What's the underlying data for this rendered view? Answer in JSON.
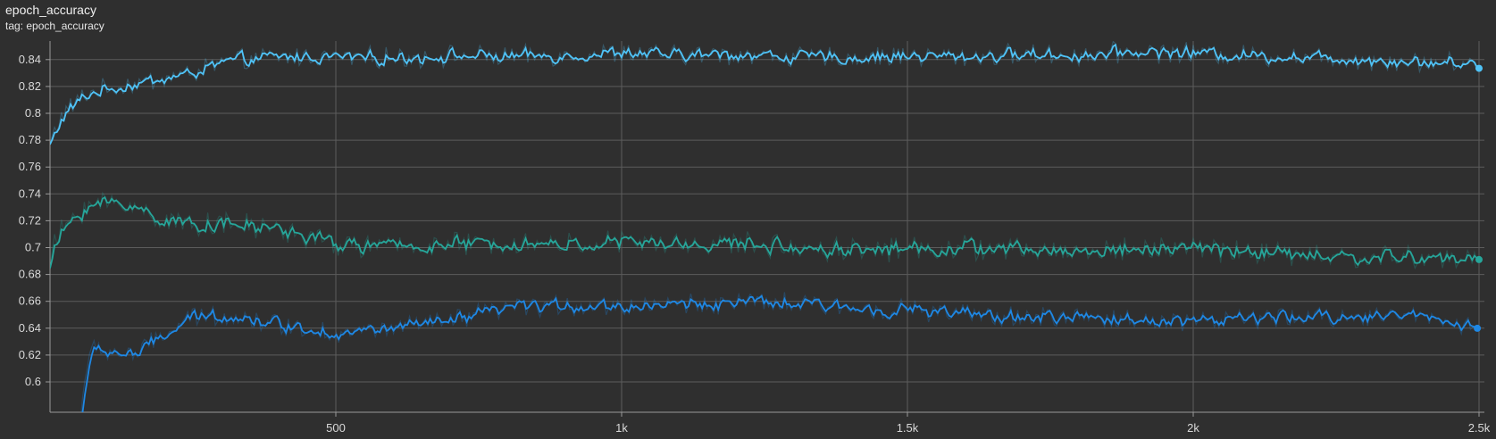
{
  "header": {
    "title": "epoch_accuracy",
    "subtitle": "tag: epoch_accuracy"
  },
  "chart_data": {
    "type": "line",
    "title": "epoch_accuracy",
    "subtitle": "tag: epoch_accuracy",
    "xlabel": "",
    "ylabel": "",
    "xlim": [
      0,
      2520
    ],
    "ylim": [
      0.588,
      0.857
    ],
    "grid": true,
    "x_ticks": [
      500,
      1000,
      1500,
      2000,
      2500
    ],
    "x_tick_labels": [
      "500",
      "1k",
      "1.5k",
      "2k",
      "2.5k"
    ],
    "y_ticks": [
      0.6,
      0.62,
      0.64,
      0.66,
      0.68,
      0.7,
      0.72,
      0.74,
      0.76,
      0.78,
      0.8,
      0.82,
      0.84
    ],
    "y_tick_labels": [
      "0.6",
      "0.62",
      "0.64",
      "0.66",
      "0.68",
      "0.7",
      "0.72",
      "0.74",
      "0.76",
      "0.78",
      "0.8",
      "0.82",
      "0.84"
    ],
    "series": [
      {
        "color": "#4fc3f7",
        "points": [
          [
            0,
            0.776
          ],
          [
            10,
            0.79
          ],
          [
            25,
            0.8
          ],
          [
            50,
            0.81
          ],
          [
            75,
            0.816
          ],
          [
            100,
            0.818
          ],
          [
            150,
            0.822
          ],
          [
            200,
            0.826
          ],
          [
            250,
            0.83
          ],
          [
            300,
            0.838
          ],
          [
            400,
            0.842
          ],
          [
            500,
            0.842
          ],
          [
            600,
            0.841
          ],
          [
            700,
            0.843
          ],
          [
            800,
            0.842
          ],
          [
            900,
            0.843
          ],
          [
            1000,
            0.845
          ],
          [
            1100,
            0.843
          ],
          [
            1200,
            0.844
          ],
          [
            1300,
            0.842
          ],
          [
            1400,
            0.841
          ],
          [
            1500,
            0.843
          ],
          [
            1600,
            0.842
          ],
          [
            1700,
            0.844
          ],
          [
            1800,
            0.843
          ],
          [
            1900,
            0.846
          ],
          [
            2000,
            0.845
          ],
          [
            2100,
            0.843
          ],
          [
            2200,
            0.842
          ],
          [
            2300,
            0.84
          ],
          [
            2400,
            0.838
          ],
          [
            2500,
            0.837
          ]
        ]
      },
      {
        "color": "#26a69a",
        "points": [
          [
            0,
            0.688
          ],
          [
            10,
            0.705
          ],
          [
            30,
            0.718
          ],
          [
            60,
            0.73
          ],
          [
            100,
            0.734
          ],
          [
            150,
            0.73
          ],
          [
            200,
            0.72
          ],
          [
            250,
            0.718
          ],
          [
            300,
            0.717
          ],
          [
            400,
            0.714
          ],
          [
            450,
            0.708
          ],
          [
            500,
            0.702
          ],
          [
            600,
            0.701
          ],
          [
            700,
            0.702
          ],
          [
            800,
            0.703
          ],
          [
            900,
            0.702
          ],
          [
            1000,
            0.704
          ],
          [
            1100,
            0.702
          ],
          [
            1200,
            0.703
          ],
          [
            1300,
            0.7
          ],
          [
            1400,
            0.699
          ],
          [
            1500,
            0.699
          ],
          [
            1600,
            0.7
          ],
          [
            1700,
            0.698
          ],
          [
            1800,
            0.697
          ],
          [
            1900,
            0.699
          ],
          [
            2000,
            0.7
          ],
          [
            2100,
            0.697
          ],
          [
            2200,
            0.694
          ],
          [
            2300,
            0.692
          ],
          [
            2400,
            0.693
          ],
          [
            2500,
            0.69
          ]
        ]
      },
      {
        "color": "#1e88e5",
        "points": [
          [
            45,
            0.548
          ],
          [
            60,
            0.6
          ],
          [
            70,
            0.62
          ],
          [
            80,
            0.625
          ],
          [
            100,
            0.622
          ],
          [
            150,
            0.621
          ],
          [
            200,
            0.635
          ],
          [
            250,
            0.648
          ],
          [
            300,
            0.65
          ],
          [
            400,
            0.643
          ],
          [
            500,
            0.636
          ],
          [
            600,
            0.64
          ],
          [
            700,
            0.645
          ],
          [
            800,
            0.655
          ],
          [
            900,
            0.657
          ],
          [
            1000,
            0.656
          ],
          [
            1100,
            0.658
          ],
          [
            1200,
            0.659
          ],
          [
            1300,
            0.658
          ],
          [
            1400,
            0.655
          ],
          [
            1500,
            0.654
          ],
          [
            1600,
            0.65
          ],
          [
            1700,
            0.648
          ],
          [
            1800,
            0.648
          ],
          [
            1900,
            0.646
          ],
          [
            2000,
            0.646
          ],
          [
            2100,
            0.647
          ],
          [
            2200,
            0.648
          ],
          [
            2300,
            0.649
          ],
          [
            2400,
            0.65
          ],
          [
            2500,
            0.64
          ]
        ]
      }
    ]
  }
}
